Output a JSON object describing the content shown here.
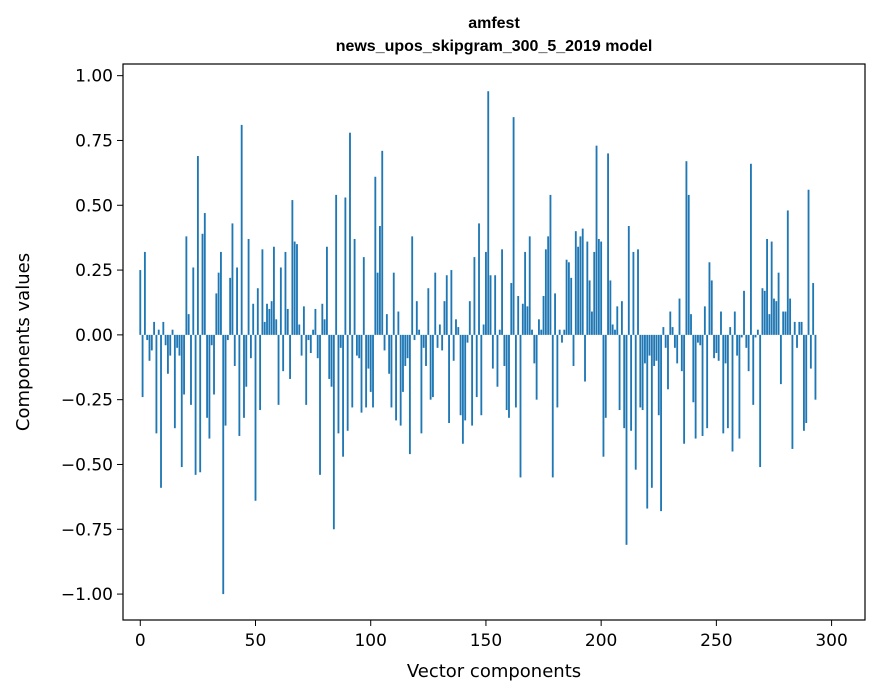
{
  "chart_data": {
    "type": "bar",
    "title": "amfest",
    "subtitle": "news_upos_skipgram_300_5_2019 model",
    "xlabel": "Vector components",
    "ylabel": "Components values",
    "xlim": [
      -7.5,
      314.5
    ],
    "ylim": [
      -1.1,
      1.045
    ],
    "xticks": [
      0,
      50,
      100,
      150,
      200,
      250,
      300
    ],
    "xtick_labels": [
      "0",
      "50",
      "100",
      "150",
      "200",
      "250",
      "300"
    ],
    "yticks": [
      1.0,
      0.75,
      0.5,
      0.25,
      0.0,
      -0.25,
      -0.5,
      -0.75,
      -1.0
    ],
    "ytick_labels": [
      "1.00",
      "0.75",
      "0.50",
      "0.25",
      "0.00",
      "−0.25",
      "−0.50",
      "−0.75",
      "−1.00"
    ],
    "bar_color": "#1f77b4",
    "values": [
      0.25,
      -0.24,
      0.32,
      -0.02,
      -0.1,
      -0.06,
      0.05,
      -0.38,
      0.02,
      -0.59,
      0.05,
      -0.04,
      -0.15,
      -0.08,
      0.02,
      -0.36,
      -0.05,
      -0.08,
      -0.51,
      -0.23,
      0.38,
      0.08,
      -0.27,
      0.26,
      -0.54,
      0.69,
      -0.53,
      0.39,
      0.47,
      -0.32,
      -0.4,
      -0.04,
      -0.23,
      0.16,
      0.24,
      0.32,
      -1.0,
      -0.35,
      -0.02,
      0.22,
      0.43,
      -0.12,
      0.26,
      -0.39,
      0.81,
      -0.32,
      -0.2,
      0.37,
      -0.09,
      0.12,
      -0.64,
      0.18,
      -0.29,
      0.33,
      0.05,
      0.12,
      0.1,
      0.13,
      0.34,
      0.06,
      -0.27,
      0.26,
      -0.14,
      0.32,
      0.1,
      -0.17,
      0.52,
      0.36,
      0.35,
      0.04,
      -0.08,
      0.11,
      -0.27,
      -0.02,
      -0.07,
      0.02,
      0.1,
      -0.09,
      -0.54,
      0.12,
      0.06,
      0.34,
      -0.17,
      -0.2,
      -0.75,
      0.54,
      -0.38,
      -0.05,
      -0.47,
      0.53,
      -0.37,
      0.78,
      -0.28,
      0.37,
      -0.08,
      -0.09,
      -0.3,
      0.3,
      -0.28,
      -0.13,
      -0.22,
      -0.28,
      0.61,
      0.24,
      0.42,
      0.71,
      -0.06,
      0.08,
      -0.15,
      -0.28,
      0.24,
      -0.33,
      0.09,
      -0.35,
      -0.22,
      -0.12,
      -0.09,
      -0.46,
      0.38,
      -0.02,
      0.13,
      0.02,
      -0.38,
      -0.05,
      -0.12,
      0.18,
      -0.25,
      -0.24,
      0.24,
      -0.05,
      0.04,
      -0.06,
      0.13,
      0.23,
      -0.34,
      0.25,
      -0.1,
      0.06,
      0.03,
      -0.31,
      -0.42,
      -0.33,
      -0.03,
      0.13,
      -0.35,
      0.3,
      -0.24,
      0.43,
      -0.31,
      0.04,
      0.32,
      0.94,
      0.23,
      -0.13,
      0.23,
      -0.2,
      0.02,
      0.33,
      -0.12,
      -0.29,
      -0.32,
      0.2,
      0.84,
      -0.28,
      0.15,
      -0.55,
      0.12,
      0.32,
      0.11,
      0.38,
      0.02,
      -0.11,
      -0.25,
      0.06,
      0.02,
      0.15,
      0.33,
      0.38,
      0.54,
      -0.55,
      0.16,
      -0.28,
      0.02,
      -0.03,
      0.02,
      0.29,
      0.28,
      0.22,
      -0.12,
      0.4,
      0.34,
      0.38,
      0.41,
      -0.18,
      0.36,
      0.21,
      0.09,
      0.32,
      0.73,
      0.37,
      0.36,
      -0.47,
      -0.32,
      0.7,
      0.21,
      0.04,
      0.02,
      0.11,
      -0.29,
      0.13,
      -0.36,
      -0.81,
      0.42,
      -0.37,
      0.32,
      -0.52,
      0.33,
      -0.28,
      -0.29,
      -0.11,
      -0.67,
      -0.08,
      -0.59,
      -0.12,
      -0.1,
      -0.31,
      -0.68,
      0.03,
      -0.05,
      -0.21,
      0.09,
      0.03,
      -0.05,
      -0.11,
      0.14,
      -0.14,
      -0.42,
      0.67,
      0.54,
      0.08,
      -0.26,
      -0.4,
      -0.03,
      -0.04,
      -0.39,
      0.11,
      -0.36,
      0.28,
      0.21,
      -0.09,
      -0.07,
      -0.1,
      0.09,
      -0.38,
      -0.11,
      -0.36,
      0.03,
      -0.45,
      0.09,
      -0.08,
      -0.4,
      -0.01,
      0.17,
      -0.05,
      -0.14,
      0.66,
      -0.27,
      -0.01,
      0.02,
      -0.51,
      0.18,
      0.17,
      0.37,
      0.08,
      0.36,
      0.14,
      0.13,
      0.24,
      -0.19,
      0.09,
      0.09,
      0.48,
      0.14,
      -0.44,
      0.05,
      -0.05,
      0.05,
      0.05,
      -0.37,
      -0.34,
      0.56,
      -0.13,
      0.2,
      -0.25
    ]
  }
}
